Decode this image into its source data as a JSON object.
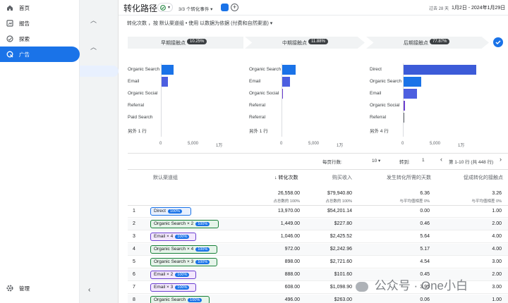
{
  "nav": {
    "items": [
      {
        "label": "首页",
        "icon": "home-icon"
      },
      {
        "label": "报告",
        "icon": "reports-icon"
      },
      {
        "label": "探索",
        "icon": "explore-icon"
      },
      {
        "label": "广告",
        "icon": "advertising-icon",
        "active": true
      }
    ],
    "admin_label": "管理"
  },
  "header": {
    "title": "转化路径",
    "events_label": "3/3 个转化事件",
    "date_prefix": "过去 28 天",
    "date_range": "1月2日 - 2024年1月29日"
  },
  "subtitle": "转化次数 ，按 默认渠道组 • 使用 以数据为依据 (付费和自然渠道)",
  "stages": [
    {
      "label": "早期接触点",
      "badge": "10.25%"
    },
    {
      "label": "中期接触点",
      "badge": "11.88%"
    },
    {
      "label": "后期接触点",
      "badge": "77.87%"
    }
  ],
  "charts": {
    "early": {
      "categories": [
        "Organic Search",
        "Email",
        "Organic Social",
        "Referral",
        "Paid Search",
        "另外 1 行"
      ],
      "values": [
        2200,
        1300,
        150,
        90,
        60,
        0
      ],
      "colors": [
        "#1a73e8",
        "#4c5fe0",
        "#6b3fd0",
        "#5f6368",
        "#5f6368",
        "#5f6368"
      ],
      "ticks": [
        "0",
        "5,000",
        "1万"
      ],
      "xlim": [
        0,
        10000
      ]
    },
    "mid": {
      "categories": [
        "Organic Search",
        "Email",
        "Organic Social",
        "Referral",
        "Referral",
        "另外 1 行"
      ],
      "values": [
        2500,
        1450,
        190,
        120,
        90,
        0
      ],
      "colors": [
        "#1a73e8",
        "#4c5fe0",
        "#6b3fd0",
        "#5f6368",
        "#5f6368",
        "#5f6368"
      ],
      "ticks": [
        "0",
        "5,000",
        "1万"
      ],
      "xlim": [
        0,
        10000
      ]
    },
    "late": {
      "categories": [
        "Direct",
        "Organic Search",
        "Email",
        "Organic Social",
        "Referral",
        "另外 4 行"
      ],
      "values": [
        13000,
        3200,
        2500,
        350,
        200,
        0
      ],
      "colors": [
        "#3c5bd8",
        "#1a73e8",
        "#4c5fe0",
        "#6b3fd0",
        "#5f6368",
        "#5f6368"
      ],
      "ticks": [
        "0",
        "5,000",
        "1万"
      ],
      "xlim": [
        0,
        15000
      ]
    }
  },
  "pagination": {
    "rows_label": "每页行数:",
    "rows_value": "10",
    "goto_label": "转到:",
    "goto_value": "1",
    "range_label": "第 1-10 行 (共 448 行)"
  },
  "table": {
    "columns": [
      "默认渠道组",
      "↓ 转化次数",
      "购买收入",
      "发生转化所需的天数",
      "促成转化的接触点"
    ],
    "totals": [
      "26,558.00",
      "$79,940.80",
      "6.36",
      "3.26"
    ],
    "totals_sub": [
      "占总数的 100%",
      "占总数的 100%",
      "与平均值相差 0%",
      "与平均值相差 0%"
    ],
    "rows": [
      {
        "idx": "1",
        "channel": "Direct",
        "pct": "100%",
        "conv": "13,970.00",
        "rev": "$54,201.14",
        "days": "0.00",
        "touch": "1.00"
      },
      {
        "idx": "2",
        "channel": "Organic Search × 2",
        "pct": "100%",
        "conv": "1,449.00",
        "rev": "$227.80",
        "days": "0.46",
        "touch": "2.00"
      },
      {
        "idx": "3",
        "channel": "Email × 4",
        "pct": "100%",
        "conv": "1,046.00",
        "rev": "$2,425.52",
        "days": "5.64",
        "touch": "4.00"
      },
      {
        "idx": "4",
        "channel": "Organic Search × 4",
        "pct": "100%",
        "conv": "972.00",
        "rev": "$2,242.96",
        "days": "5.17",
        "touch": "4.00"
      },
      {
        "idx": "5",
        "channel": "Organic Search × 3",
        "pct": "100%",
        "conv": "898.00",
        "rev": "$2,721.60",
        "days": "4.54",
        "touch": "3.00"
      },
      {
        "idx": "6",
        "channel": "Email × 2",
        "pct": "100%",
        "conv": "888.00",
        "rev": "$101.60",
        "days": "0.45",
        "touch": "2.00"
      },
      {
        "idx": "7",
        "channel": "Email × 3",
        "pct": "100%",
        "conv": "608.00",
        "rev": "$1,098.90",
        "days": "3.95",
        "touch": "3.00"
      },
      {
        "idx": "8",
        "channel": "Organic Search",
        "pct": "100%",
        "conv": "496.00",
        "rev": "$263.00",
        "days": "0.06",
        "touch": "1.00"
      }
    ]
  },
  "watermark": "公众号 · One小白",
  "colors": {
    "accent": "#1a73e8",
    "tag_green": "#188038",
    "tag_purple": "#6b3fd0"
  }
}
